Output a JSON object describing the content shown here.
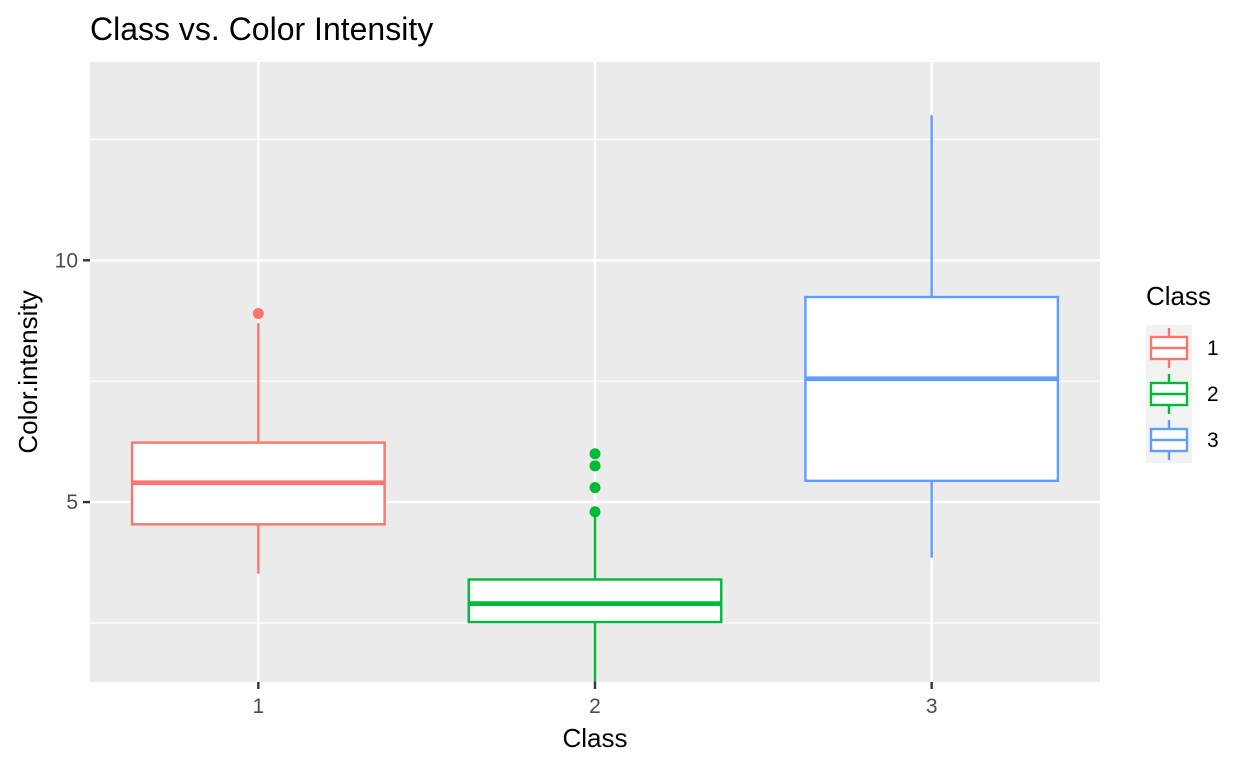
{
  "chart_data": {
    "type": "box",
    "title": "Class vs. Color Intensity",
    "xlabel": "Class",
    "ylabel": "Color.intensity",
    "categories": [
      "1",
      "2",
      "3"
    ],
    "ylim": [
      1.28,
      14.1
    ],
    "y_ticks": [
      5,
      10
    ],
    "y_minor_gridlines": [
      2.5,
      7.5,
      12.5
    ],
    "grid": true,
    "legend": {
      "title": "Class",
      "position": "right",
      "labels": [
        "1",
        "2",
        "3"
      ]
    },
    "colors": [
      "#F8766D",
      "#00BA38",
      "#619CFF"
    ],
    "boxes": [
      {
        "category": "1",
        "whisker_low": 3.52,
        "q1": 4.54,
        "median": 5.4,
        "q3": 6.23,
        "whisker_high": 8.7,
        "outliers": [
          8.9
        ]
      },
      {
        "category": "2",
        "whisker_low": 1.28,
        "q1": 2.52,
        "median": 2.9,
        "q3": 3.4,
        "whisker_high": 4.8,
        "outliers": [
          4.8,
          5.3,
          5.75,
          6.0
        ]
      },
      {
        "category": "3",
        "whisker_low": 3.85,
        "q1": 5.44,
        "median": 7.55,
        "q3": 9.24,
        "whisker_high": 13.0,
        "outliers": []
      }
    ]
  }
}
